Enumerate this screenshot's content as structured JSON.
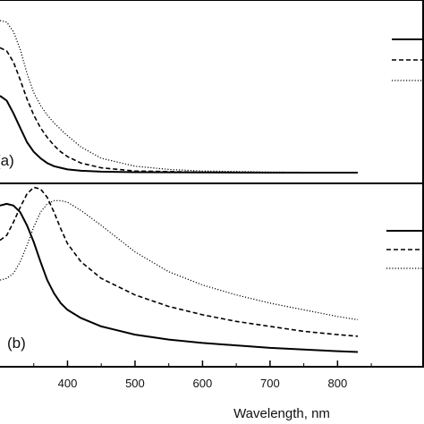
{
  "chart_data": [
    {
      "type": "line",
      "panel_label": "(a)",
      "xlim": [
        300,
        830
      ],
      "ylim": [
        0,
        1.0
      ],
      "grid": false,
      "legend": "top-right, line samples only, text cropped",
      "series": [
        {
          "style": "solid",
          "x": [
            300,
            310,
            320,
            330,
            340,
            350,
            360,
            370,
            380,
            390,
            400,
            420,
            450,
            500,
            600,
            700,
            830
          ],
          "values": [
            0.48,
            0.45,
            0.37,
            0.28,
            0.19,
            0.13,
            0.09,
            0.06,
            0.04,
            0.03,
            0.02,
            0.012,
            0.006,
            0.003,
            0.001,
            0.0,
            0.0
          ]
        },
        {
          "style": "dashed",
          "x": [
            300,
            310,
            320,
            330,
            340,
            350,
            360,
            370,
            380,
            390,
            400,
            420,
            450,
            500,
            600,
            700,
            830
          ],
          "values": [
            0.78,
            0.76,
            0.69,
            0.58,
            0.46,
            0.36,
            0.28,
            0.22,
            0.17,
            0.13,
            0.1,
            0.06,
            0.03,
            0.01,
            0.003,
            0.001,
            0.0
          ]
        },
        {
          "style": "dotted",
          "x": [
            300,
            310,
            320,
            330,
            340,
            350,
            360,
            370,
            380,
            390,
            400,
            420,
            450,
            500,
            550,
            600,
            700,
            830
          ],
          "values": [
            0.95,
            0.94,
            0.88,
            0.77,
            0.62,
            0.5,
            0.42,
            0.36,
            0.31,
            0.27,
            0.23,
            0.16,
            0.09,
            0.04,
            0.02,
            0.01,
            0.004,
            0.0
          ]
        }
      ]
    },
    {
      "type": "line",
      "panel_label": "(b)",
      "xlim": [
        300,
        830
      ],
      "ylim": [
        0,
        1.0
      ],
      "grid": false,
      "xlabel": "Wavelength, nm",
      "xticks": [
        400,
        500,
        600,
        700,
        800
      ],
      "legend": "top-right, line samples only, text cropped",
      "series": [
        {
          "style": "solid",
          "x": [
            300,
            310,
            320,
            330,
            340,
            350,
            360,
            370,
            380,
            390,
            400,
            420,
            450,
            500,
            550,
            600,
            650,
            700,
            750,
            800,
            830
          ],
          "values": [
            0.92,
            0.93,
            0.92,
            0.88,
            0.8,
            0.7,
            0.58,
            0.47,
            0.39,
            0.33,
            0.29,
            0.24,
            0.19,
            0.14,
            0.11,
            0.09,
            0.075,
            0.06,
            0.05,
            0.04,
            0.035
          ]
        },
        {
          "style": "dashed",
          "x": [
            300,
            310,
            320,
            330,
            340,
            350,
            360,
            370,
            380,
            390,
            400,
            420,
            450,
            500,
            550,
            600,
            650,
            700,
            750,
            800,
            830
          ],
          "values": [
            0.71,
            0.74,
            0.82,
            0.91,
            0.99,
            1.03,
            1.02,
            0.97,
            0.88,
            0.78,
            0.69,
            0.58,
            0.48,
            0.38,
            0.31,
            0.26,
            0.22,
            0.19,
            0.16,
            0.14,
            0.13
          ]
        },
        {
          "style": "dotted",
          "x": [
            300,
            310,
            320,
            330,
            340,
            350,
            360,
            370,
            380,
            390,
            400,
            420,
            450,
            500,
            550,
            600,
            650,
            700,
            750,
            800,
            830
          ],
          "values": [
            0.47,
            0.48,
            0.51,
            0.58,
            0.68,
            0.79,
            0.88,
            0.93,
            0.95,
            0.95,
            0.94,
            0.89,
            0.8,
            0.64,
            0.52,
            0.44,
            0.38,
            0.33,
            0.29,
            0.25,
            0.23
          ]
        }
      ]
    }
  ]
}
